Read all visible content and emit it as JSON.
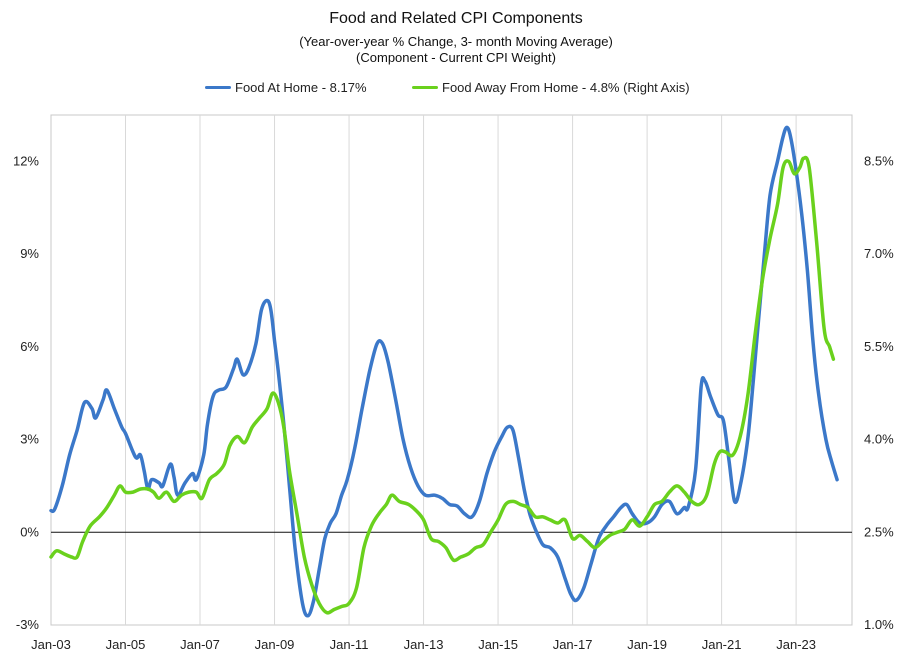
{
  "chart_data": {
    "type": "line",
    "title": "Food and Related CPI Components",
    "subtitle": "(Year-over-year % Change, 3- month Moving Average)",
    "subtitle2": "(Component - Current CPI Weight)",
    "legend_position": "top-center",
    "grid": "vertical",
    "x_ticks": [
      "Jan-03",
      "Jan-05",
      "Jan-07",
      "Jan-09",
      "Jan-11",
      "Jan-13",
      "Jan-15",
      "Jan-17",
      "Jan-19",
      "Jan-21",
      "Jan-23"
    ],
    "x_range": [
      "2003-01",
      "2024-06"
    ],
    "y_left": {
      "ticks": [
        "-3%",
        "0%",
        "3%",
        "6%",
        "9%",
        "12%"
      ],
      "ylim": [
        -3,
        13.5
      ]
    },
    "y_right": {
      "ticks": [
        "1.0%",
        "2.5%",
        "4.0%",
        "5.5%",
        "7.0%",
        "8.5%"
      ],
      "ylim": [
        1.0,
        9.25
      ]
    },
    "series": [
      {
        "name": "Food At Home - 8.17%",
        "axis": "left",
        "color": "#3b78c9",
        "points": [
          [
            2003.0,
            0.7
          ],
          [
            2003.1,
            0.75
          ],
          [
            2003.3,
            1.5
          ],
          [
            2003.5,
            2.5
          ],
          [
            2003.7,
            3.3
          ],
          [
            2003.9,
            4.2
          ],
          [
            2004.1,
            4.0
          ],
          [
            2004.2,
            3.7
          ],
          [
            2004.4,
            4.3
          ],
          [
            2004.5,
            4.6
          ],
          [
            2004.7,
            4.0
          ],
          [
            2004.9,
            3.4
          ],
          [
            2005.0,
            3.2
          ],
          [
            2005.2,
            2.6
          ],
          [
            2005.3,
            2.4
          ],
          [
            2005.4,
            2.5
          ],
          [
            2005.5,
            2.0
          ],
          [
            2005.6,
            1.4
          ],
          [
            2005.7,
            1.7
          ],
          [
            2005.9,
            1.6
          ],
          [
            2006.0,
            1.5
          ],
          [
            2006.2,
            2.2
          ],
          [
            2006.3,
            1.8
          ],
          [
            2006.4,
            1.2
          ],
          [
            2006.6,
            1.6
          ],
          [
            2006.8,
            1.9
          ],
          [
            2006.9,
            1.7
          ],
          [
            2007.1,
            2.5
          ],
          [
            2007.2,
            3.5
          ],
          [
            2007.35,
            4.4
          ],
          [
            2007.5,
            4.6
          ],
          [
            2007.7,
            4.7
          ],
          [
            2007.9,
            5.3
          ],
          [
            2008.0,
            5.6
          ],
          [
            2008.15,
            5.1
          ],
          [
            2008.3,
            5.3
          ],
          [
            2008.5,
            6.1
          ],
          [
            2008.65,
            7.2
          ],
          [
            2008.8,
            7.5
          ],
          [
            2008.9,
            7.2
          ],
          [
            2009.0,
            6.2
          ],
          [
            2009.1,
            5.2
          ],
          [
            2009.25,
            3.5
          ],
          [
            2009.4,
            1.5
          ],
          [
            2009.55,
            -0.5
          ],
          [
            2009.75,
            -2.3
          ],
          [
            2009.9,
            -2.7
          ],
          [
            2010.05,
            -2.2
          ],
          [
            2010.2,
            -1.2
          ],
          [
            2010.35,
            -0.2
          ],
          [
            2010.5,
            0.3
          ],
          [
            2010.65,
            0.6
          ],
          [
            2010.8,
            1.2
          ],
          [
            2010.95,
            1.7
          ],
          [
            2011.15,
            2.7
          ],
          [
            2011.35,
            4.0
          ],
          [
            2011.55,
            5.2
          ],
          [
            2011.75,
            6.1
          ],
          [
            2011.9,
            6.1
          ],
          [
            2012.05,
            5.5
          ],
          [
            2012.25,
            4.3
          ],
          [
            2012.45,
            3.0
          ],
          [
            2012.65,
            2.1
          ],
          [
            2012.85,
            1.5
          ],
          [
            2013.05,
            1.2
          ],
          [
            2013.3,
            1.2
          ],
          [
            2013.5,
            1.1
          ],
          [
            2013.7,
            0.9
          ],
          [
            2013.9,
            0.85
          ],
          [
            2014.1,
            0.6
          ],
          [
            2014.3,
            0.5
          ],
          [
            2014.5,
            1.0
          ],
          [
            2014.7,
            1.9
          ],
          [
            2014.9,
            2.6
          ],
          [
            2015.1,
            3.1
          ],
          [
            2015.25,
            3.4
          ],
          [
            2015.4,
            3.3
          ],
          [
            2015.55,
            2.4
          ],
          [
            2015.7,
            1.4
          ],
          [
            2015.85,
            0.6
          ],
          [
            2016.0,
            0.1
          ],
          [
            2016.2,
            -0.4
          ],
          [
            2016.4,
            -0.5
          ],
          [
            2016.6,
            -0.8
          ],
          [
            2016.8,
            -1.5
          ],
          [
            2016.95,
            -2.0
          ],
          [
            2017.1,
            -2.2
          ],
          [
            2017.3,
            -1.8
          ],
          [
            2017.5,
            -1.0
          ],
          [
            2017.7,
            -0.2
          ],
          [
            2017.9,
            0.2
          ],
          [
            2018.1,
            0.5
          ],
          [
            2018.3,
            0.8
          ],
          [
            2018.45,
            0.9
          ],
          [
            2018.6,
            0.6
          ],
          [
            2018.8,
            0.3
          ],
          [
            2019.0,
            0.3
          ],
          [
            2019.2,
            0.5
          ],
          [
            2019.4,
            0.9
          ],
          [
            2019.6,
            1.0
          ],
          [
            2019.8,
            0.6
          ],
          [
            2020.0,
            0.8
          ],
          [
            2020.1,
            0.8
          ],
          [
            2020.3,
            2.0
          ],
          [
            2020.45,
            4.7
          ],
          [
            2020.55,
            4.9
          ],
          [
            2020.7,
            4.4
          ],
          [
            2020.9,
            3.8
          ],
          [
            2021.05,
            3.6
          ],
          [
            2021.2,
            2.3
          ],
          [
            2021.35,
            1.0
          ],
          [
            2021.5,
            1.5
          ],
          [
            2021.7,
            3.0
          ],
          [
            2021.85,
            4.9
          ],
          [
            2022.0,
            7.0
          ],
          [
            2022.15,
            9.0
          ],
          [
            2022.3,
            10.9
          ],
          [
            2022.5,
            12.0
          ],
          [
            2022.65,
            12.8
          ],
          [
            2022.75,
            13.1
          ],
          [
            2022.85,
            12.8
          ],
          [
            2023.0,
            11.7
          ],
          [
            2023.15,
            10.3
          ],
          [
            2023.3,
            8.5
          ],
          [
            2023.45,
            6.2
          ],
          [
            2023.6,
            4.5
          ],
          [
            2023.8,
            3.0
          ],
          [
            2023.95,
            2.3
          ],
          [
            2024.1,
            1.7
          ]
        ]
      },
      {
        "name": "Food Away From Home - 4.8% (Right Axis)",
        "axis": "right",
        "color": "#6ad11d",
        "points": [
          [
            2003.0,
            2.1
          ],
          [
            2003.15,
            2.2
          ],
          [
            2003.35,
            2.15
          ],
          [
            2003.55,
            2.1
          ],
          [
            2003.7,
            2.1
          ],
          [
            2003.85,
            2.35
          ],
          [
            2004.05,
            2.6
          ],
          [
            2004.3,
            2.75
          ],
          [
            2004.5,
            2.9
          ],
          [
            2004.7,
            3.1
          ],
          [
            2004.85,
            3.25
          ],
          [
            2005.0,
            3.15
          ],
          [
            2005.2,
            3.15
          ],
          [
            2005.4,
            3.2
          ],
          [
            2005.6,
            3.2
          ],
          [
            2005.75,
            3.15
          ],
          [
            2005.9,
            3.05
          ],
          [
            2006.1,
            3.15
          ],
          [
            2006.3,
            3.0
          ],
          [
            2006.5,
            3.1
          ],
          [
            2006.7,
            3.15
          ],
          [
            2006.9,
            3.15
          ],
          [
            2007.05,
            3.05
          ],
          [
            2007.25,
            3.35
          ],
          [
            2007.45,
            3.45
          ],
          [
            2007.65,
            3.6
          ],
          [
            2007.8,
            3.9
          ],
          [
            2008.0,
            4.05
          ],
          [
            2008.2,
            3.95
          ],
          [
            2008.4,
            4.2
          ],
          [
            2008.6,
            4.35
          ],
          [
            2008.8,
            4.5
          ],
          [
            2008.95,
            4.75
          ],
          [
            2009.1,
            4.6
          ],
          [
            2009.25,
            4.2
          ],
          [
            2009.4,
            3.5
          ],
          [
            2009.6,
            2.8
          ],
          [
            2009.8,
            2.1
          ],
          [
            2010.0,
            1.65
          ],
          [
            2010.2,
            1.35
          ],
          [
            2010.4,
            1.2
          ],
          [
            2010.6,
            1.25
          ],
          [
            2010.8,
            1.3
          ],
          [
            2011.0,
            1.35
          ],
          [
            2011.2,
            1.6
          ],
          [
            2011.4,
            2.25
          ],
          [
            2011.6,
            2.6
          ],
          [
            2011.8,
            2.8
          ],
          [
            2012.0,
            2.95
          ],
          [
            2012.15,
            3.1
          ],
          [
            2012.35,
            3.0
          ],
          [
            2012.6,
            2.95
          ],
          [
            2012.8,
            2.85
          ],
          [
            2013.0,
            2.7
          ],
          [
            2013.2,
            2.4
          ],
          [
            2013.4,
            2.35
          ],
          [
            2013.6,
            2.25
          ],
          [
            2013.8,
            2.05
          ],
          [
            2014.0,
            2.1
          ],
          [
            2014.2,
            2.15
          ],
          [
            2014.4,
            2.25
          ],
          [
            2014.6,
            2.3
          ],
          [
            2014.8,
            2.5
          ],
          [
            2015.0,
            2.7
          ],
          [
            2015.2,
            2.95
          ],
          [
            2015.4,
            3.0
          ],
          [
            2015.6,
            2.95
          ],
          [
            2015.8,
            2.9
          ],
          [
            2016.0,
            2.75
          ],
          [
            2016.2,
            2.75
          ],
          [
            2016.4,
            2.7
          ],
          [
            2016.6,
            2.65
          ],
          [
            2016.8,
            2.7
          ],
          [
            2017.0,
            2.4
          ],
          [
            2017.2,
            2.45
          ],
          [
            2017.4,
            2.35
          ],
          [
            2017.6,
            2.25
          ],
          [
            2017.8,
            2.35
          ],
          [
            2018.0,
            2.45
          ],
          [
            2018.2,
            2.5
          ],
          [
            2018.4,
            2.55
          ],
          [
            2018.6,
            2.7
          ],
          [
            2018.8,
            2.6
          ],
          [
            2019.0,
            2.75
          ],
          [
            2019.2,
            2.95
          ],
          [
            2019.4,
            3.0
          ],
          [
            2019.6,
            3.15
          ],
          [
            2019.8,
            3.25
          ],
          [
            2020.0,
            3.15
          ],
          [
            2020.2,
            3.0
          ],
          [
            2020.4,
            2.95
          ],
          [
            2020.6,
            3.1
          ],
          [
            2020.8,
            3.6
          ],
          [
            2020.95,
            3.8
          ],
          [
            2021.1,
            3.8
          ],
          [
            2021.3,
            3.75
          ],
          [
            2021.5,
            4.05
          ],
          [
            2021.7,
            4.7
          ],
          [
            2021.9,
            5.7
          ],
          [
            2022.1,
            6.6
          ],
          [
            2022.3,
            7.25
          ],
          [
            2022.5,
            7.8
          ],
          [
            2022.65,
            8.4
          ],
          [
            2022.8,
            8.5
          ],
          [
            2022.95,
            8.3
          ],
          [
            2023.1,
            8.4
          ],
          [
            2023.2,
            8.55
          ],
          [
            2023.35,
            8.4
          ],
          [
            2023.55,
            7.2
          ],
          [
            2023.75,
            5.8
          ],
          [
            2023.9,
            5.5
          ],
          [
            2024.0,
            5.3
          ]
        ]
      }
    ]
  }
}
